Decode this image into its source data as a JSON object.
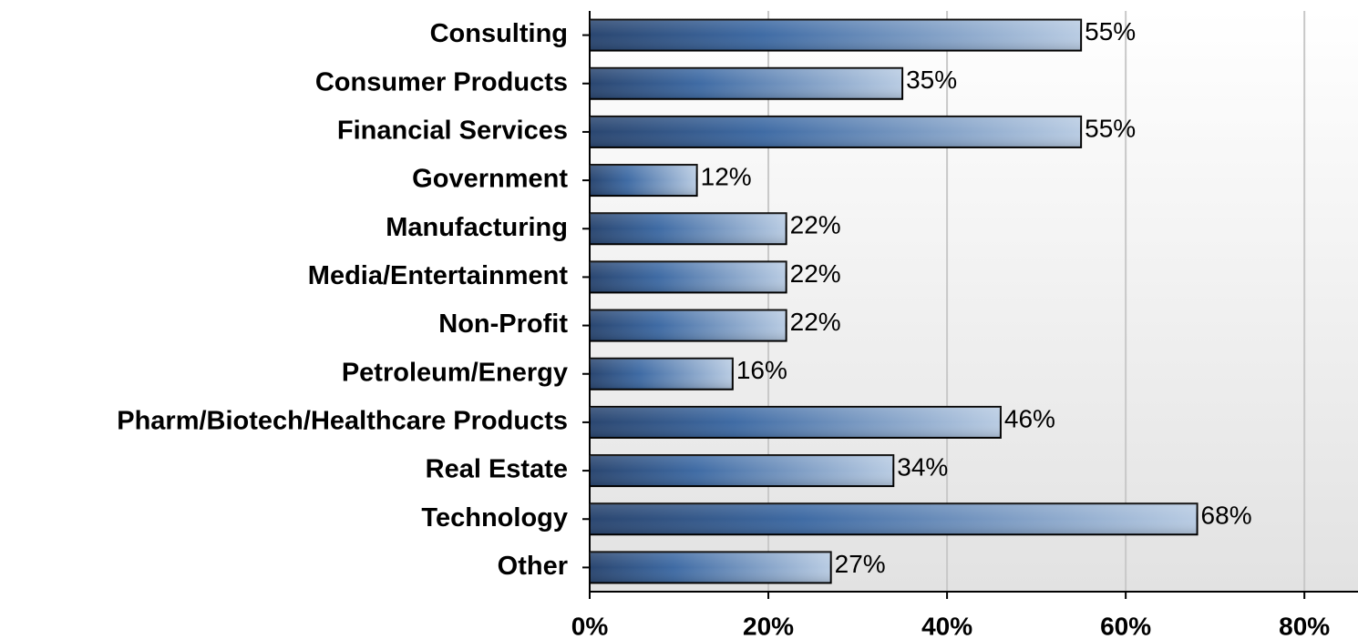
{
  "chart_data": {
    "type": "bar",
    "orientation": "horizontal",
    "categories": [
      "Consulting",
      "Consumer Products",
      "Financial Services",
      "Government",
      "Manufacturing",
      "Media/Entertainment",
      "Non-Profit",
      "Petroleum/Energy",
      "Pharm/Biotech/Healthcare Products",
      "Real Estate",
      "Technology",
      "Other"
    ],
    "values": [
      55,
      35,
      55,
      12,
      22,
      22,
      22,
      16,
      46,
      34,
      68,
      27
    ],
    "value_labels": [
      "55%",
      "35%",
      "55%",
      "12%",
      "22%",
      "22%",
      "22%",
      "16%",
      "46%",
      "34%",
      "68%",
      "27%"
    ],
    "color": "#3e6aa3",
    "xlim": [
      0,
      86
    ],
    "xticks": [
      {
        "value": 0,
        "label": "0%"
      },
      {
        "value": 20,
        "label": "20%"
      },
      {
        "value": 40,
        "label": "40%"
      },
      {
        "value": 60,
        "label": "60%"
      },
      {
        "value": 80,
        "label": "80%"
      }
    ],
    "grid": true
  }
}
